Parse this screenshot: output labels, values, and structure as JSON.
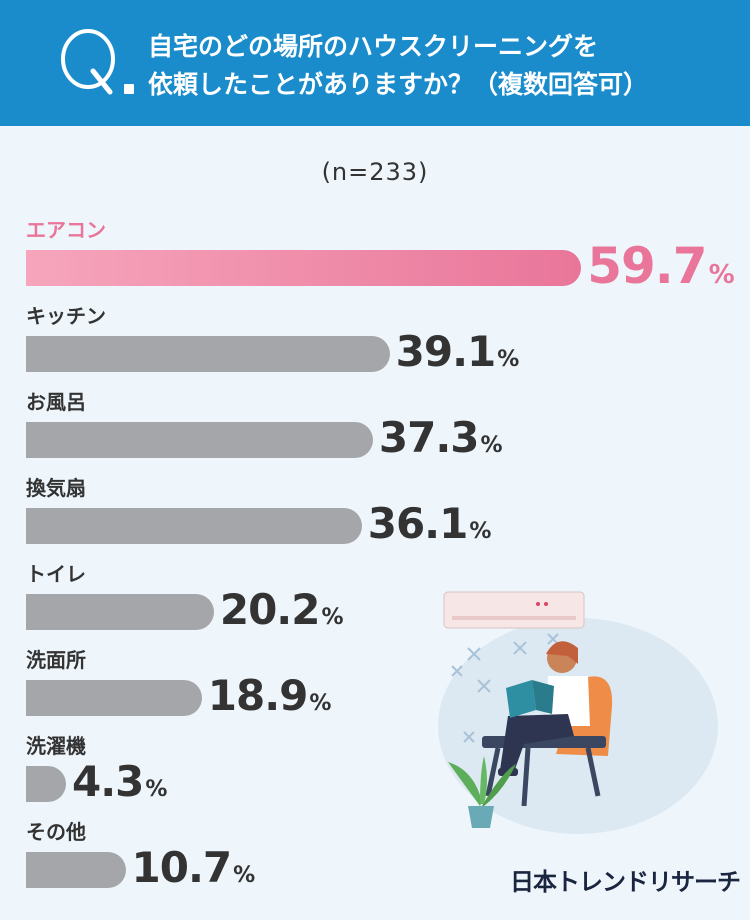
{
  "header": {
    "q_letter": "Q",
    "question_line1": "自宅のどの場所のハウスクリーニングを",
    "question_line2": "依頼したことがありますか？（複数回答可）",
    "color": "#1a8ccc"
  },
  "sample_size": "(n=233)",
  "brand": "日本トレンドリサーチ",
  "colors": {
    "highlight": "#e9769a",
    "bar": "#a5a6a9",
    "text": "#333333"
  },
  "chart_data": {
    "type": "bar",
    "orientation": "horizontal",
    "categories": [
      "エアコン",
      "キッチン",
      "お風呂",
      "換気扇",
      "トイレ",
      "洗面所",
      "洗濯機",
      "その他"
    ],
    "values": [
      59.7,
      39.1,
      37.3,
      36.1,
      20.2,
      18.9,
      4.3,
      10.7
    ],
    "unit": "%",
    "highlight_index": 0,
    "xlim": [
      0,
      100
    ]
  }
}
